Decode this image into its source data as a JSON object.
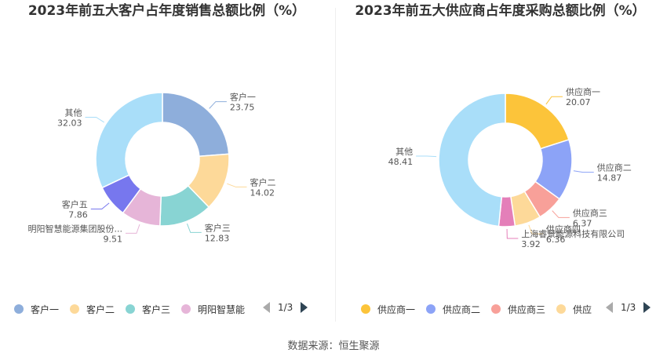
{
  "chart_data": [
    {
      "type": "pie",
      "title": "2023年前五大客户占年度销售总额比例（%）",
      "categories": [
        "客户一",
        "客户二",
        "客户三",
        "明阳智慧能源集团股份...",
        "客户五",
        "其他"
      ],
      "values": [
        23.75,
        14.02,
        12.83,
        9.51,
        7.86,
        32.03
      ],
      "colors": [
        "#8eaedb",
        "#fdd999",
        "#88d4d3",
        "#e6b5d8",
        "#7777ee",
        "#a9def9"
      ],
      "legend": {
        "items": [
          "客户一",
          "客户二",
          "客户三",
          "明阳智慧能"
        ],
        "page": "1/3",
        "placement": "bottom"
      }
    },
    {
      "type": "pie",
      "title": "2023年前五大供应商占年度采购总额比例（%）",
      "categories": [
        "供应商一",
        "供应商二",
        "供应商三",
        "供应商四",
        "上海睿景能源科技有限公司",
        "其他"
      ],
      "values": [
        20.07,
        14.87,
        6.37,
        6.36,
        3.92,
        48.41
      ],
      "colors": [
        "#fcc43a",
        "#8ca3f7",
        "#f8a099",
        "#fdd999",
        "#e47fb9",
        "#a9def9"
      ],
      "legend": {
        "items": [
          "供应商一",
          "供应商二",
          "供应商三",
          "供应"
        ],
        "page": "1/3",
        "placement": "bottom"
      }
    }
  ],
  "footer": {
    "source": "数据来源：恒生聚源"
  }
}
